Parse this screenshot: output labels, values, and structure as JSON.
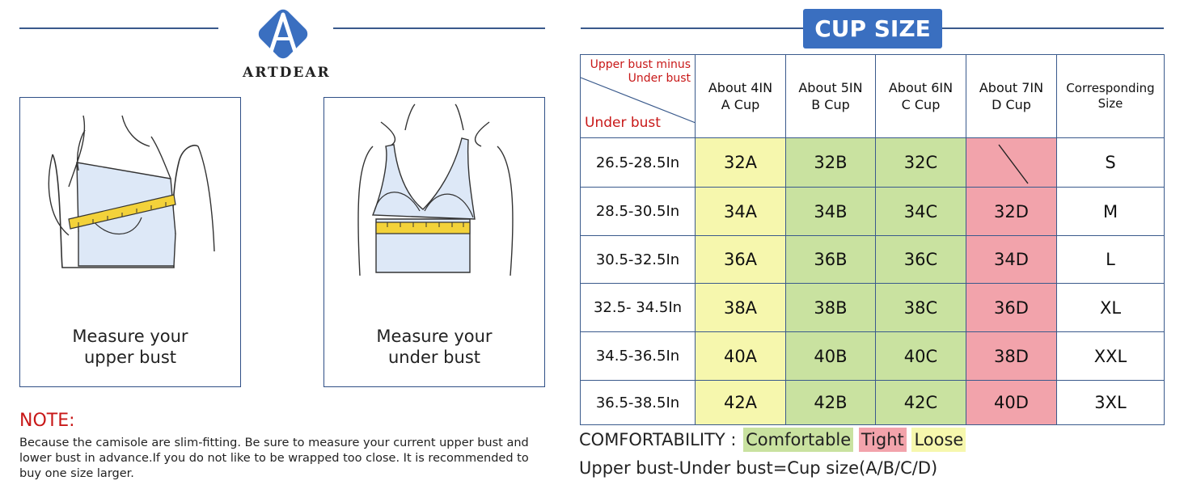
{
  "brand": {
    "name": "ARTDEAR",
    "logo_letter": "A"
  },
  "cards": [
    {
      "caption": [
        "Measure your",
        "upper bust"
      ]
    },
    {
      "caption": [
        "Measure your",
        "under bust"
      ]
    }
  ],
  "note": {
    "title": "NOTE:",
    "body": "Because the camisole are slim-fitting. Be sure to measure your current upper bust and lower bust in advance.If you do not like to be wrapped too close. It is recommended to buy one size larger."
  },
  "cup_size": {
    "title": "CUP SIZE",
    "corner_top": [
      "Upper bust minus",
      "Under bust"
    ],
    "corner_bottom": "Under bust",
    "columns": [
      {
        "line1": "About 4IN",
        "line2": "A Cup"
      },
      {
        "line1": "About 5IN",
        "line2": "B Cup"
      },
      {
        "line1": "About 6IN",
        "line2": "C Cup"
      },
      {
        "line1": "About 7IN",
        "line2": "D Cup"
      },
      {
        "line1": "Corresponding",
        "line2": "Size"
      }
    ],
    "rows": [
      {
        "range": "26.5-28.5In",
        "a": "32A",
        "b": "32B",
        "c": "32C",
        "d": "",
        "size": "S"
      },
      {
        "range": "28.5-30.5In",
        "a": "34A",
        "b": "34B",
        "c": "34C",
        "d": "32D",
        "size": "M"
      },
      {
        "range": "30.5-32.5In",
        "a": "36A",
        "b": "36B",
        "c": "36C",
        "d": "34D",
        "size": "L"
      },
      {
        "range": "32.5- 34.5In",
        "a": "38A",
        "b": "38B",
        "c": "38C",
        "d": "36D",
        "size": "XL"
      },
      {
        "range": "34.5-36.5In",
        "a": "40A",
        "b": "40B",
        "c": "40C",
        "d": "38D",
        "size": "XXL"
      },
      {
        "range": "36.5-38.5In",
        "a": "42A",
        "b": "42B",
        "c": "42C",
        "d": "40D",
        "size": "3XL"
      }
    ]
  },
  "legend": {
    "label": "COMFORTABILITY :",
    "comfortable": "Comfortable",
    "tight": "Tight",
    "loose": "Loose"
  },
  "formula": "Upper bust-Under bust=Cup size(A/B/C/D)",
  "colors": {
    "accent_blue": "#3a6fc0",
    "border_navy": "#2f4f86",
    "note_red": "#c81818",
    "loose_yellow": "#f6f7ad",
    "comfortable_green": "#c9e2a0",
    "tight_pink": "#f2a3ab",
    "tape_yellow": "#f3d23a",
    "garment_blue": "#dde8f7"
  }
}
